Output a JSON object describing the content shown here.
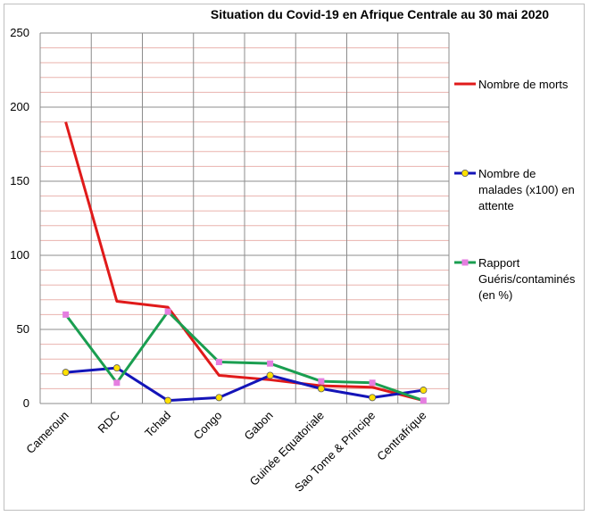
{
  "chart_data": {
    "type": "line",
    "title": "Situation du Covid-19 en Afrique Centrale au 30 mai 2020",
    "categories": [
      "Cameroun",
      "RDC",
      "Tchad",
      "Congo",
      "Gabon",
      "Guinée Equatoriale",
      "Sao Tome & Principe",
      "Centrafrique"
    ],
    "ylim": [
      0,
      250
    ],
    "yticks": [
      0,
      50,
      100,
      150,
      200,
      250
    ],
    "minor_gridlines_step": 10,
    "grid": true,
    "legend_position": "right",
    "series": [
      {
        "name_lines": [
          "Nombre de morts"
        ],
        "color": "#e01a1a",
        "marker": "none",
        "values": [
          190,
          69,
          65,
          19,
          16,
          12,
          11,
          2
        ]
      },
      {
        "name_lines": [
          "Nombre de",
          "malades (x100) en",
          "attente"
        ],
        "color": "#1414b8",
        "marker": "circle",
        "marker_color": "#ffe000",
        "values": [
          21,
          24,
          2,
          4,
          19,
          10,
          4,
          9
        ]
      },
      {
        "name_lines": [
          "Rapport",
          "Guéris/contaminés",
          "(en %)"
        ],
        "color": "#1a9e50",
        "marker": "square",
        "marker_color": "#e57ee0",
        "values": [
          60,
          14,
          62,
          28,
          27,
          15,
          14,
          2
        ]
      }
    ]
  }
}
